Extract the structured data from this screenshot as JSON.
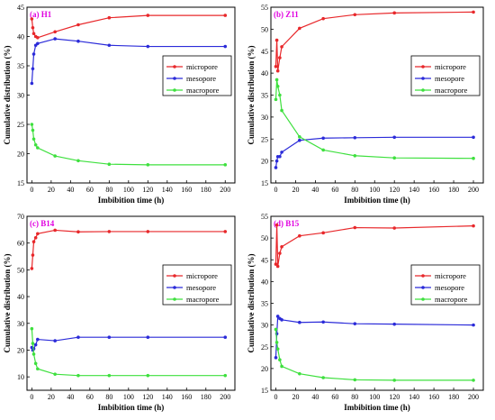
{
  "colors": {
    "micropore": "#e8282b",
    "mesopore": "#2b2bd9",
    "macropore": "#3ee03e",
    "title": "#e000e0"
  },
  "chart_data": [
    {
      "type": "line",
      "title": "(a) H1",
      "xlabel": "Imbibition time (h)",
      "ylabel": "Cumulative distribution (%)",
      "xlim": [
        -5,
        210
      ],
      "ylim": [
        15,
        45
      ],
      "xticks": [
        0,
        20,
        40,
        60,
        80,
        100,
        120,
        140,
        160,
        180,
        200
      ],
      "yticks": [
        15,
        20,
        25,
        30,
        35,
        40,
        45
      ],
      "legend": "right",
      "x": [
        0,
        1,
        2,
        4,
        6,
        24,
        48,
        80,
        120,
        200
      ],
      "series": [
        {
          "name": "micropore",
          "values": [
            43,
            41.5,
            40.5,
            40,
            39.8,
            40.8,
            42,
            43.2,
            43.6,
            43.6
          ]
        },
        {
          "name": "mesopore",
          "values": [
            32,
            34.5,
            37,
            38.5,
            38.8,
            39.6,
            39.2,
            38.5,
            38.3,
            38.3
          ]
        },
        {
          "name": "macropore",
          "values": [
            25,
            24,
            22.5,
            21.5,
            21,
            19.6,
            18.8,
            18.2,
            18.1,
            18.1
          ]
        }
      ]
    },
    {
      "type": "line",
      "title": "(b) Z11",
      "xlabel": "Imbibition time (h)",
      "ylabel": "Cumulative distribution (%)",
      "xlim": [
        -5,
        210
      ],
      "ylim": [
        15,
        55
      ],
      "xticks": [
        0,
        20,
        40,
        60,
        80,
        100,
        120,
        140,
        160,
        180,
        200
      ],
      "yticks": [
        15,
        20,
        25,
        30,
        35,
        40,
        45,
        50,
        55
      ],
      "legend": "right",
      "x": [
        0,
        1,
        2,
        4,
        6,
        24,
        48,
        80,
        120,
        200
      ],
      "series": [
        {
          "name": "micropore",
          "values": [
            41.5,
            47.5,
            40.5,
            43.5,
            46,
            50.2,
            52.4,
            53.3,
            53.7,
            53.9
          ]
        },
        {
          "name": "mesopore",
          "values": [
            18.5,
            20,
            21,
            21,
            22,
            24.7,
            25.2,
            25.3,
            25.4,
            25.4
          ]
        },
        {
          "name": "macropore",
          "values": [
            34,
            38.5,
            37,
            35,
            31.5,
            25.5,
            22.5,
            21.2,
            20.7,
            20.6
          ]
        }
      ]
    },
    {
      "type": "line",
      "title": "(c) B14",
      "xlabel": "Imbibition time (h)",
      "ylabel": "Cumulative distribution (%)",
      "xlim": [
        -5,
        210
      ],
      "ylim": [
        5,
        70
      ],
      "xticks": [
        0,
        20,
        40,
        60,
        80,
        100,
        120,
        140,
        160,
        180,
        200
      ],
      "yticks": [
        10,
        20,
        30,
        40,
        50,
        60,
        70
      ],
      "legend": "right",
      "x": [
        0,
        1,
        2,
        4,
        6,
        24,
        48,
        80,
        120,
        200
      ],
      "series": [
        {
          "name": "micropore",
          "values": [
            50.5,
            55.5,
            60.5,
            62,
            63.5,
            64.8,
            64.2,
            64.3,
            64.3,
            64.3
          ]
        },
        {
          "name": "mesopore",
          "values": [
            21,
            20,
            20.5,
            22,
            24,
            23.5,
            24.8,
            24.8,
            24.8,
            24.8
          ]
        },
        {
          "name": "macropore",
          "values": [
            28,
            22.5,
            18.5,
            15,
            13,
            11,
            10.5,
            10.5,
            10.5,
            10.5
          ]
        }
      ]
    },
    {
      "type": "line",
      "title": "(d) B15",
      "xlabel": "Imbibition time (h)",
      "ylabel": "Cumulative distribution (%)",
      "xlim": [
        -5,
        210
      ],
      "ylim": [
        15,
        55
      ],
      "xticks": [
        0,
        20,
        40,
        60,
        80,
        100,
        120,
        140,
        160,
        180,
        200
      ],
      "yticks": [
        15,
        20,
        25,
        30,
        35,
        40,
        45,
        50,
        55
      ],
      "legend": "right",
      "x": [
        0,
        1,
        2,
        4,
        6,
        24,
        48,
        80,
        120,
        200
      ],
      "series": [
        {
          "name": "micropore",
          "values": [
            44,
            53,
            43.5,
            46.5,
            48,
            50.5,
            51.2,
            52.4,
            52.3,
            52.8
          ]
        },
        {
          "name": "mesopore",
          "values": [
            22.5,
            28,
            32,
            31.5,
            31.2,
            30.6,
            30.7,
            30.3,
            30.2,
            30
          ]
        },
        {
          "name": "macropore",
          "values": [
            29,
            26,
            24.5,
            22,
            20.5,
            18.8,
            17.9,
            17.4,
            17.3,
            17.3
          ]
        }
      ]
    }
  ]
}
